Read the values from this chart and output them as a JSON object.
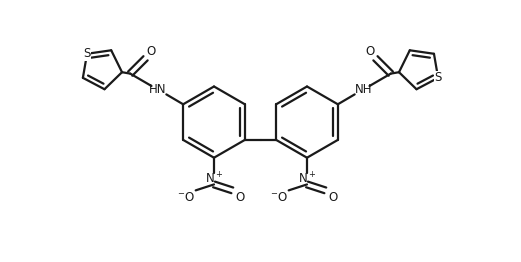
{
  "bg_color": "#ffffff",
  "line_color": "#1a1a1a",
  "line_width": 1.6,
  "figsize": [
    5.21,
    2.62
  ],
  "dpi": 100,
  "xlim": [
    0,
    10.42
  ],
  "ylim": [
    0,
    5.24
  ]
}
